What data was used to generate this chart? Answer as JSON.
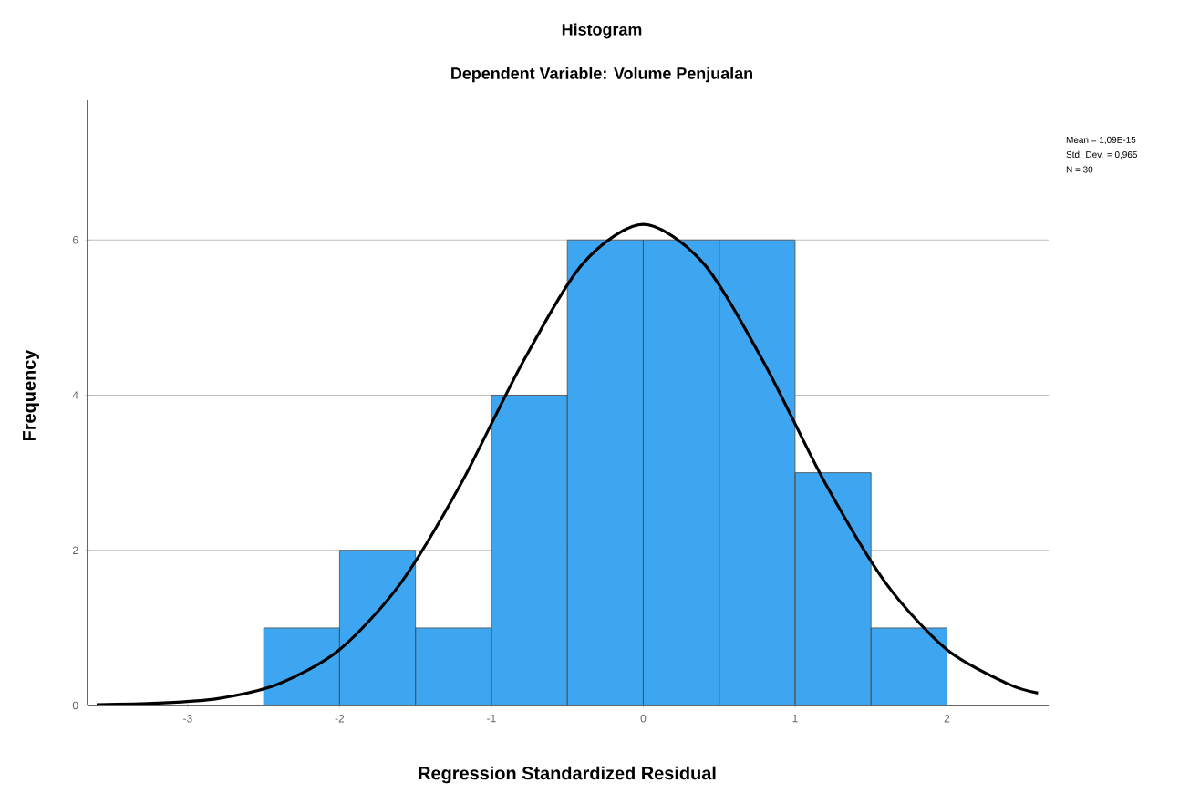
{
  "chart_data": {
    "type": "histogram",
    "title": "Histogram",
    "subtitle": "Dependent Variable: Volume Penjualan",
    "xlabel": "Regression Standardized Residual",
    "ylabel": "Frequency",
    "annotations": [
      "Mean = 1,09E-15",
      "Std. Dev. = 0,965",
      "N = 30"
    ],
    "series": [
      {
        "color": "#3ea6f0",
        "bins": [
          -2.5,
          -2.0,
          -1.5,
          -1.0,
          -0.5,
          0.0,
          0.5,
          1.0,
          1.5,
          2.0
        ],
        "values": [
          1,
          2,
          1,
          4,
          6,
          6,
          6,
          3,
          1
        ]
      },
      {
        "type": "line",
        "color": "#000000",
        "x": [
          -3.6,
          -3.2,
          -2.8,
          -2.4,
          -2.0,
          -1.6,
          -1.2,
          -0.8,
          -0.4,
          0.0,
          0.4,
          0.8,
          1.2,
          1.6,
          2.0,
          2.4,
          2.6
        ],
        "values": [
          0.01,
          0.03,
          0.09,
          0.28,
          0.72,
          1.57,
          2.86,
          4.4,
          5.69,
          6.2,
          5.69,
          4.4,
          2.86,
          1.57,
          0.72,
          0.28,
          0.16
        ]
      }
    ],
    "xlim": [
      -3.66,
      2.67
    ],
    "ylim": [
      0,
      7.8
    ],
    "xticks": [
      -3,
      -2,
      -1,
      0,
      1,
      2
    ],
    "yticks": [
      0,
      2,
      4,
      6
    ],
    "grid": "y"
  }
}
